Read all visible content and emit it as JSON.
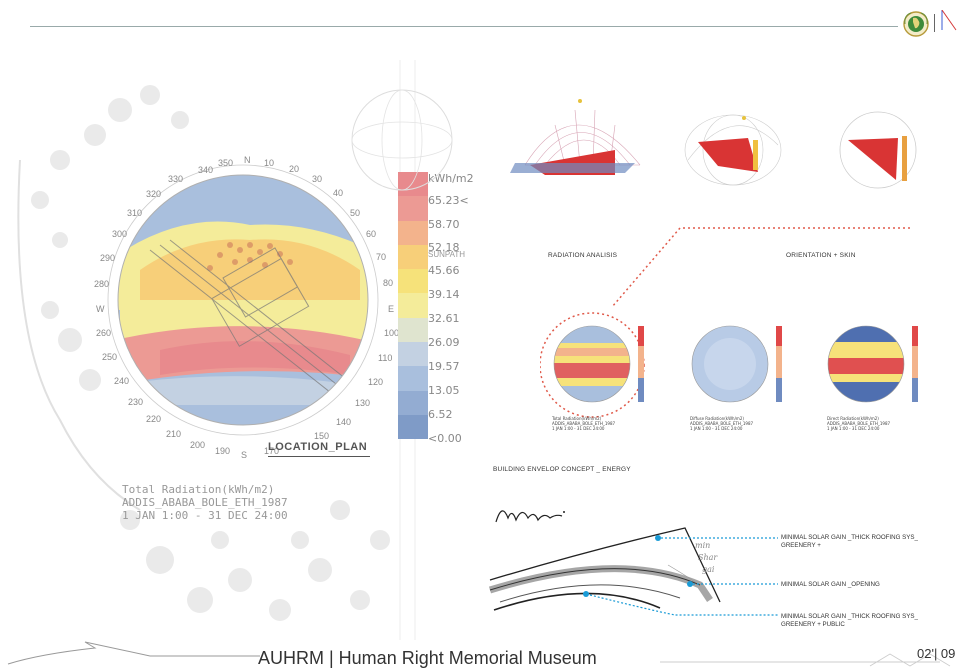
{
  "header": {
    "rule_color": "#9aa7ad"
  },
  "location_plan": {
    "label": "LOCATION_PLAN",
    "compass": [
      "340",
      "350",
      "N",
      "10",
      "20",
      "30",
      "40",
      "50",
      "60",
      "70",
      "80",
      "E",
      "100",
      "110",
      "120",
      "130",
      "140",
      "150",
      "170",
      "S",
      "190",
      "200",
      "210",
      "220",
      "230",
      "240",
      "250",
      "260",
      "W",
      "280",
      "290",
      "300",
      "310",
      "320",
      "330"
    ],
    "sunpath_label": "SUNPATH"
  },
  "legend": {
    "unit": "kWh/m2",
    "values": [
      "65.23<",
      "58.70",
      "52.18",
      "45.66",
      "39.14",
      "32.61",
      "26.09",
      "19.57",
      "13.05",
      "6.52",
      "<0.00"
    ],
    "colors": [
      "#e88a8d",
      "#ec9a94",
      "#f3b38c",
      "#f7cf79",
      "#f6e27a",
      "#f4ec9a",
      "#dfe4cf",
      "#c3d1e2",
      "#a9bfdd",
      "#93acd2",
      "#7f9bc7"
    ]
  },
  "caption": {
    "line1": "Total Radiation(kWh/m2)",
    "line2": "ADDIS_ABABA_BOLE_ETH_1987",
    "line3": "1 JAN 1:00 - 31 DEC 24:00"
  },
  "sections": {
    "radiation": "RADIATION ANALISIS",
    "orientation": "ORIENTATION + SKIN",
    "envelope": "BUILDING ENVELOP CONCEPT _ ENERGY"
  },
  "small_charts": [
    {
      "line1": "Total Radiation(kWh/m2)",
      "line2": "ADDIS_ABABA_BOLE_ETH_1987",
      "line3": "1 JAN 1:00 - 31 DEC 24:00"
    },
    {
      "line1": "Diffuse Radiation(kWh/m2)",
      "line2": "ADDIS_ABABA_BOLE_ETH_1987",
      "line3": "1 JAN 1:00 - 31 DEC 24:00"
    },
    {
      "line1": "Direct Radiation(kWh/m2)",
      "line2": "ADDIS_ABABA_BOLE_ETH_1987",
      "line3": "1 JAN 1:00 - 31 DEC 24:00"
    }
  ],
  "envelope_notes": [
    {
      "line1": "MINIMAL SOLAR GAIN _THICK ROOFING SYS_",
      "line2": "GREENERY +"
    },
    {
      "line1": "MINIMAL SOLAR GAIN _OPENING",
      "line2": ""
    },
    {
      "line1": "MINIMAL SOLAR GAIN _THICK ROOFING SYS_",
      "line2": "GREENERY + PUBLIC"
    }
  ],
  "footer": {
    "title": "AUHRM | Human Right Memorial Museum",
    "page": "02'| 09"
  }
}
